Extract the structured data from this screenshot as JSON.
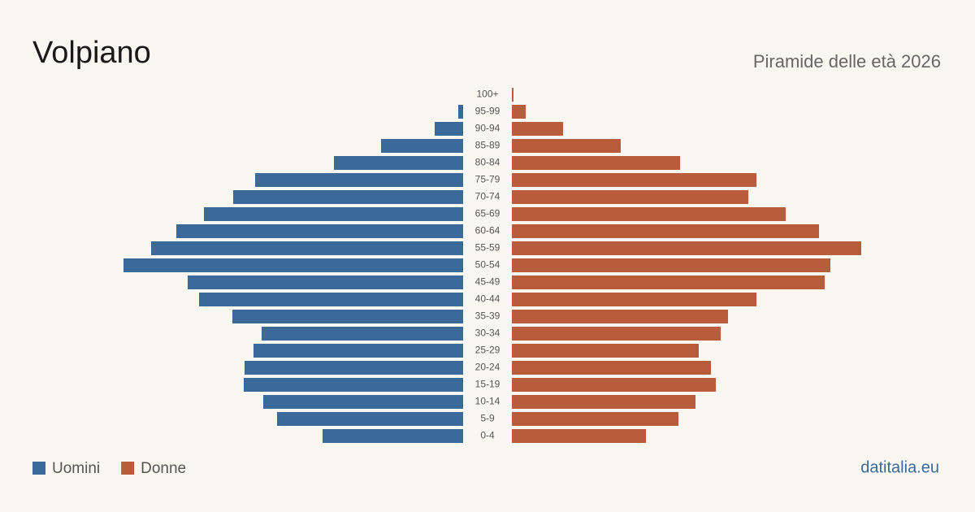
{
  "chart_data": {
    "type": "pyramid",
    "title": "Volpiano",
    "subtitle": "Piramide delle età 2026",
    "source": "datitalia.eu",
    "categories": [
      "100+",
      "95-99",
      "90-94",
      "85-89",
      "80-84",
      "75-79",
      "70-74",
      "65-69",
      "60-64",
      "55-59",
      "50-54",
      "45-49",
      "40-44",
      "35-39",
      "30-34",
      "25-29",
      "20-24",
      "15-19",
      "10-14",
      "5-9",
      "0-4"
    ],
    "series": [
      {
        "name": "Uomini",
        "color": "#3b6a9a",
        "values": [
          0,
          6,
          35,
          101,
          159,
          256,
          283,
          319,
          353,
          384,
          418,
          339,
          325,
          284,
          248,
          258,
          269,
          270,
          246,
          229,
          173
        ]
      },
      {
        "name": "Donne",
        "color": "#b85c3c",
        "values": [
          2,
          17,
          63,
          134,
          207,
          301,
          291,
          337,
          378,
          430,
          392,
          385,
          301,
          266,
          257,
          230,
          245,
          251,
          226,
          205,
          165
        ]
      }
    ],
    "xlim": [
      0,
      450
    ]
  }
}
